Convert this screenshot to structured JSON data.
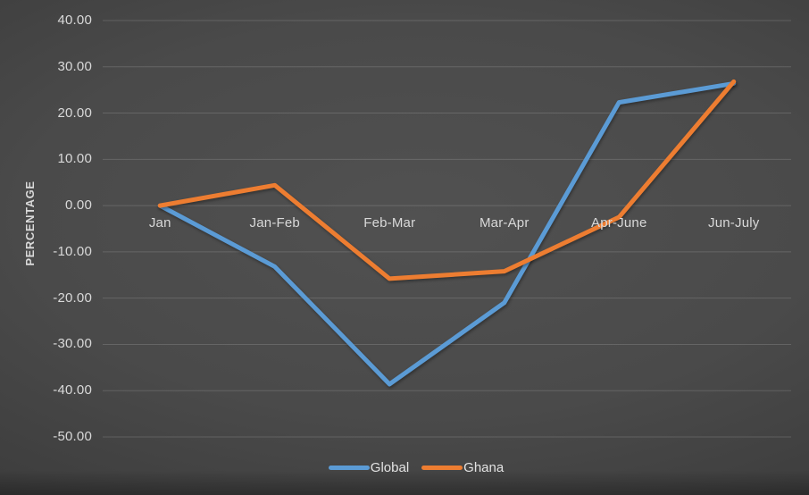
{
  "chart": {
    "y_axis_title": "PERCENTAGE"
  },
  "chart_data": {
    "type": "line",
    "title": "",
    "xlabel": "",
    "ylabel": "PERCENTAGE",
    "categories": [
      "Jan",
      "Jan-Feb",
      "Feb-Mar",
      "Mar-Apr",
      "Apr-June",
      "Jun-July"
    ],
    "series": [
      {
        "name": "Global",
        "color": "#5B9BD5",
        "values": [
          0.0,
          -13.2,
          -38.6,
          -21.0,
          22.3,
          26.4
        ]
      },
      {
        "name": "Ghana",
        "color": "#ED7D31",
        "values": [
          0.0,
          4.4,
          -15.8,
          -14.2,
          -2.5,
          26.8
        ]
      }
    ],
    "ylim": [
      -50,
      40
    ],
    "ytick_step": 10,
    "ytick_labels": [
      "40.00",
      "30.00",
      "20.00",
      "10.00",
      "0.00",
      "-10.00",
      "-20.00",
      "-30.00",
      "-40.00",
      "-50.00"
    ],
    "grid": true,
    "legend_position": "bottom",
    "background_color": "#4a4a4a",
    "text_color": "#d9d9d9"
  }
}
